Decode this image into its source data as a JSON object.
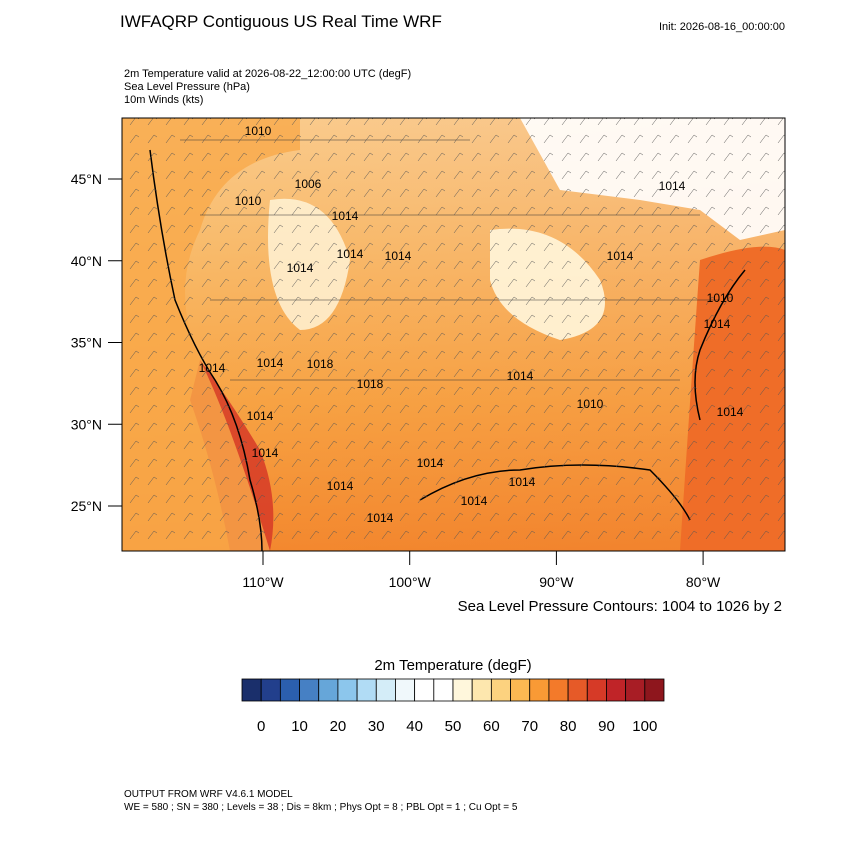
{
  "header": {
    "title": "IWFAQRP Contiguous US Real Time WRF",
    "init": "Init: 2026-08-16_00:00:00",
    "fields": [
      "2m Temperature valid at 2026-08-22_12:00:00 UTC   (degF)",
      "Sea Level Pressure   (hPa)",
      "10m Winds   (kts)"
    ]
  },
  "map": {
    "lat_ticks": [
      {
        "value": 45,
        "label": "45°N"
      },
      {
        "value": 40,
        "label": "40°N"
      },
      {
        "value": 35,
        "label": "35°N"
      },
      {
        "value": 30,
        "label": "30°N"
      },
      {
        "value": 25,
        "label": "25°N"
      }
    ],
    "lon_ticks": [
      {
        "value": -110,
        "label": "110°W"
      },
      {
        "value": -100,
        "label": "100°W"
      },
      {
        "value": -90,
        "label": "90°W"
      },
      {
        "value": -80,
        "label": "80°W"
      }
    ],
    "contour_labels": [
      "1010",
      "1006",
      "1014",
      "1010",
      "1014",
      "1014",
      "1014",
      "1014",
      "1014",
      "1014",
      "1018",
      "1018",
      "1014",
      "1010",
      "1014",
      "1014",
      "1014",
      "1014",
      "1014",
      "1014",
      "1014",
      "1014",
      "1014",
      "1010",
      "1014"
    ],
    "contour_note": "Sea Level Pressure Contours: 1004 to 1026 by 2"
  },
  "colorbar": {
    "title": "2m Temperature  (degF)",
    "labels": [
      0,
      10,
      20,
      30,
      40,
      50,
      60,
      70,
      80,
      90,
      100
    ],
    "colors": [
      "#1a2f6b",
      "#223f8c",
      "#2b5fae",
      "#4680c4",
      "#66a6d9",
      "#8cc6ec",
      "#b1dcf5",
      "#d4edf8",
      "#f0f8fb",
      "#ffffff",
      "#ffffff",
      "#fff7dc",
      "#fde7ae",
      "#fcd27f",
      "#fbb852",
      "#f99a35",
      "#f37a2a",
      "#e65a28",
      "#d63a27",
      "#c02428",
      "#a81d25",
      "#8e161d"
    ]
  },
  "footer": [
    "OUTPUT FROM WRF V4.6.1 MODEL",
    "WE = 580 ; SN = 380 ; Levels = 38 ; Dis = 8km ; Phys Opt = 8 ; PBL Opt = 1 ; Cu Opt = 5"
  ]
}
